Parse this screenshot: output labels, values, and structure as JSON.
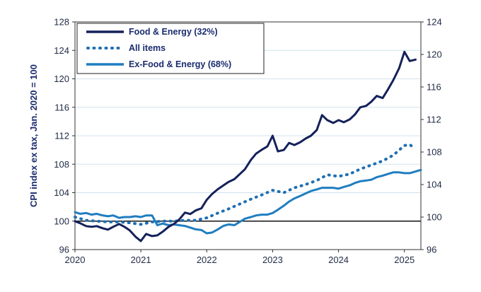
{
  "chart_data": {
    "type": "line",
    "title": "",
    "xlabel": "",
    "ylabel": "CPI index ex tax, Jan. 2020 = 100",
    "ylim_left": [
      96,
      128
    ],
    "ylim_right": [
      96,
      124
    ],
    "left_ticks": [
      "96",
      "100",
      "104",
      "108",
      "112",
      "116",
      "120",
      "124",
      "128"
    ],
    "right_ticks": [
      "96",
      "100",
      "104",
      "108",
      "112",
      "116",
      "120",
      "124"
    ],
    "x_tick_labels": [
      "2020",
      "2021",
      "2022",
      "2023",
      "2024",
      "2025"
    ],
    "x_ticks": [
      2020,
      2021,
      2022,
      2023,
      2024,
      2025
    ],
    "xlim": [
      2020,
      2025.25
    ],
    "grid": true,
    "reference_line": 100,
    "legend": {
      "placement": "top-left",
      "entries": [
        "Food & Energy (32%)",
        "All items",
        "Ex-Food & Energy (68%)"
      ]
    },
    "series": [
      {
        "name": "Food & Energy (32%)",
        "axis": "left",
        "color": "#14215a",
        "style": "solid",
        "points": [
          [
            2020.0,
            100.0
          ],
          [
            2020.08,
            99.7
          ],
          [
            2020.17,
            99.3
          ],
          [
            2020.25,
            99.2
          ],
          [
            2020.33,
            99.3
          ],
          [
            2020.42,
            99.0
          ],
          [
            2020.5,
            98.8
          ],
          [
            2020.58,
            99.2
          ],
          [
            2020.67,
            99.6
          ],
          [
            2020.75,
            99.2
          ],
          [
            2020.83,
            98.7
          ],
          [
            2020.92,
            97.8
          ],
          [
            2021.0,
            97.2
          ],
          [
            2021.08,
            98.2
          ],
          [
            2021.17,
            97.9
          ],
          [
            2021.25,
            98.0
          ],
          [
            2021.33,
            98.5
          ],
          [
            2021.42,
            99.2
          ],
          [
            2021.5,
            99.6
          ],
          [
            2021.58,
            100.2
          ],
          [
            2021.67,
            101.2
          ],
          [
            2021.75,
            101.0
          ],
          [
            2021.83,
            101.5
          ],
          [
            2021.92,
            101.8
          ],
          [
            2022.0,
            103.0
          ],
          [
            2022.08,
            103.8
          ],
          [
            2022.17,
            104.5
          ],
          [
            2022.25,
            105.0
          ],
          [
            2022.33,
            105.5
          ],
          [
            2022.42,
            105.9
          ],
          [
            2022.5,
            106.6
          ],
          [
            2022.58,
            107.3
          ],
          [
            2022.67,
            108.6
          ],
          [
            2022.75,
            109.5
          ],
          [
            2022.83,
            110.0
          ],
          [
            2022.92,
            110.5
          ],
          [
            2023.0,
            112.0
          ],
          [
            2023.08,
            109.8
          ],
          [
            2023.17,
            110.0
          ],
          [
            2023.25,
            111.0
          ],
          [
            2023.33,
            110.7
          ],
          [
            2023.42,
            111.1
          ],
          [
            2023.5,
            111.6
          ],
          [
            2023.58,
            112.0
          ],
          [
            2023.67,
            112.8
          ],
          [
            2023.75,
            114.9
          ],
          [
            2023.83,
            114.2
          ],
          [
            2023.92,
            113.8
          ],
          [
            2024.0,
            114.2
          ],
          [
            2024.08,
            113.9
          ],
          [
            2024.17,
            114.3
          ],
          [
            2024.25,
            115.0
          ],
          [
            2024.33,
            116.0
          ],
          [
            2024.42,
            116.2
          ],
          [
            2024.5,
            116.8
          ],
          [
            2024.58,
            117.6
          ],
          [
            2024.67,
            117.3
          ],
          [
            2024.75,
            118.5
          ],
          [
            2024.83,
            119.8
          ],
          [
            2024.92,
            121.5
          ],
          [
            2025.0,
            123.8
          ],
          [
            2025.08,
            122.5
          ],
          [
            2025.17,
            122.7
          ]
        ]
      },
      {
        "name": "All items",
        "axis": "right",
        "color": "#1f6fb2",
        "style": "dotted",
        "points": [
          [
            2020.0,
            100.0
          ],
          [
            2020.17,
            99.6
          ],
          [
            2020.33,
            99.5
          ],
          [
            2020.5,
            99.4
          ],
          [
            2020.67,
            99.4
          ],
          [
            2020.83,
            99.3
          ],
          [
            2021.0,
            99.1
          ],
          [
            2021.17,
            99.4
          ],
          [
            2021.33,
            99.5
          ],
          [
            2021.5,
            99.5
          ],
          [
            2021.67,
            99.6
          ],
          [
            2021.83,
            99.6
          ],
          [
            2022.0,
            99.9
          ],
          [
            2022.17,
            100.5
          ],
          [
            2022.33,
            101.0
          ],
          [
            2022.5,
            101.6
          ],
          [
            2022.67,
            102.2
          ],
          [
            2022.83,
            102.7
          ],
          [
            2023.0,
            103.3
          ],
          [
            2023.17,
            103.0
          ],
          [
            2023.33,
            103.6
          ],
          [
            2023.5,
            104.0
          ],
          [
            2023.67,
            104.5
          ],
          [
            2023.83,
            105.2
          ],
          [
            2024.0,
            105.0
          ],
          [
            2024.17,
            105.3
          ],
          [
            2024.33,
            105.9
          ],
          [
            2024.5,
            106.4
          ],
          [
            2024.67,
            106.9
          ],
          [
            2024.83,
            107.6
          ],
          [
            2025.0,
            108.8
          ],
          [
            2025.08,
            108.9
          ],
          [
            2025.17,
            108.4
          ]
        ]
      },
      {
        "name": "Ex-Food & Energy (68%)",
        "axis": "right",
        "color": "#1f7dc0",
        "style": "solid",
        "points": [
          [
            2020.0,
            100.6
          ],
          [
            2020.08,
            100.4
          ],
          [
            2020.17,
            100.5
          ],
          [
            2020.25,
            100.3
          ],
          [
            2020.33,
            100.4
          ],
          [
            2020.42,
            100.2
          ],
          [
            2020.5,
            100.1
          ],
          [
            2020.58,
            100.2
          ],
          [
            2020.67,
            99.9
          ],
          [
            2020.75,
            100.0
          ],
          [
            2020.83,
            100.0
          ],
          [
            2020.92,
            100.1
          ],
          [
            2021.0,
            100.0
          ],
          [
            2021.08,
            100.2
          ],
          [
            2021.17,
            100.2
          ],
          [
            2021.25,
            99.0
          ],
          [
            2021.33,
            99.2
          ],
          [
            2021.42,
            99.0
          ],
          [
            2021.5,
            99.1
          ],
          [
            2021.58,
            99.0
          ],
          [
            2021.67,
            98.9
          ],
          [
            2021.75,
            98.7
          ],
          [
            2021.83,
            98.5
          ],
          [
            2021.92,
            98.4
          ],
          [
            2022.0,
            98.0
          ],
          [
            2022.08,
            98.1
          ],
          [
            2022.17,
            98.5
          ],
          [
            2022.25,
            98.9
          ],
          [
            2022.33,
            99.1
          ],
          [
            2022.42,
            99.0
          ],
          [
            2022.5,
            99.4
          ],
          [
            2022.58,
            99.8
          ],
          [
            2022.67,
            100.0
          ],
          [
            2022.75,
            100.2
          ],
          [
            2022.83,
            100.3
          ],
          [
            2022.92,
            100.3
          ],
          [
            2023.0,
            100.5
          ],
          [
            2023.08,
            100.9
          ],
          [
            2023.17,
            101.4
          ],
          [
            2023.25,
            101.9
          ],
          [
            2023.33,
            102.3
          ],
          [
            2023.42,
            102.6
          ],
          [
            2023.5,
            102.9
          ],
          [
            2023.58,
            103.2
          ],
          [
            2023.67,
            103.4
          ],
          [
            2023.75,
            103.6
          ],
          [
            2023.83,
            103.6
          ],
          [
            2023.92,
            103.6
          ],
          [
            2024.0,
            103.5
          ],
          [
            2024.08,
            103.7
          ],
          [
            2024.17,
            103.9
          ],
          [
            2024.25,
            104.2
          ],
          [
            2024.33,
            104.4
          ],
          [
            2024.42,
            104.5
          ],
          [
            2024.5,
            104.6
          ],
          [
            2024.58,
            104.9
          ],
          [
            2024.67,
            105.1
          ],
          [
            2024.75,
            105.3
          ],
          [
            2024.83,
            105.5
          ],
          [
            2024.92,
            105.5
          ],
          [
            2025.0,
            105.4
          ],
          [
            2025.08,
            105.4
          ],
          [
            2025.17,
            105.6
          ],
          [
            2025.25,
            105.8
          ]
        ]
      }
    ]
  }
}
